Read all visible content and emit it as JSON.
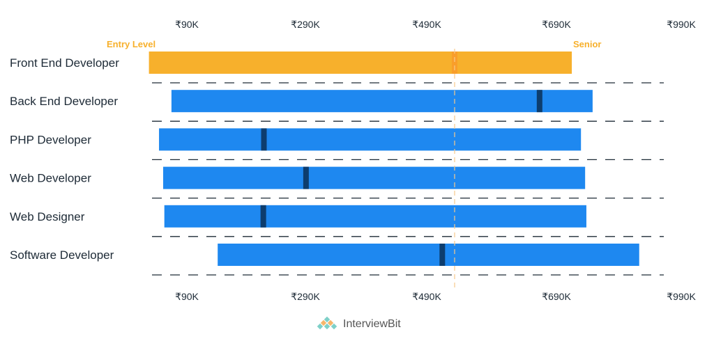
{
  "chart_data": {
    "type": "range-bar",
    "title": "",
    "tick_labels": [
      "₹90K",
      "₹290K",
      "₹490K",
      "₹690K",
      "₹990K"
    ],
    "tick_values": [
      90,
      290,
      490,
      690,
      990
    ],
    "units": "thousand INR",
    "level_labels": {
      "start": "Entry Level",
      "end": "Senior"
    },
    "grid": "dashed horizontal separators",
    "reference_line": 533,
    "colors": {
      "highlight": "#f7b02c",
      "bar": "#1e88f0",
      "marker": "#0d3d6e",
      "highlight_marker": "#f99e2a"
    },
    "series": [
      {
        "category": "Front End Developer",
        "min": 26,
        "max": 727,
        "median": 533,
        "highlight": true
      },
      {
        "category": "Back End Developer",
        "min": 64,
        "max": 777,
        "median": 664
      },
      {
        "category": "PHP Developer",
        "min": 43,
        "max": 749,
        "median": 220
      },
      {
        "category": "Web Developer",
        "min": 50,
        "max": 759,
        "median": 291
      },
      {
        "category": "Web Designer",
        "min": 52,
        "max": 762,
        "median": 219
      },
      {
        "category": "Software Developer",
        "min": 142,
        "max": 889,
        "median": 514
      }
    ]
  },
  "logo": {
    "text": "InterviewBit"
  }
}
